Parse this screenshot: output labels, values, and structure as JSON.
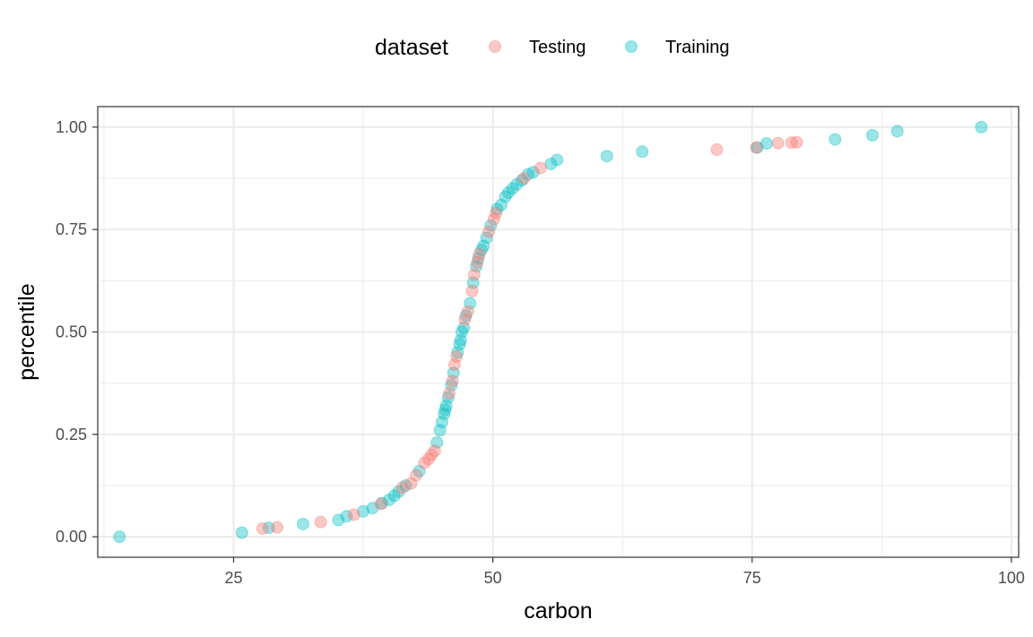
{
  "chart_data": {
    "type": "scatter",
    "title": "",
    "xlabel": "carbon",
    "ylabel": "percentile",
    "xlim": [
      11.9,
      100.7
    ],
    "ylim": [
      -0.05,
      1.05
    ],
    "x_ticks": [
      25,
      50,
      75,
      100
    ],
    "x_tick_labels": [
      "25",
      "50",
      "75",
      "100"
    ],
    "y_ticks": [
      0,
      0.25,
      0.5,
      0.75,
      1
    ],
    "y_tick_labels": [
      "0.00",
      "0.25",
      "0.50",
      "0.75",
      "1.00"
    ],
    "grid": true,
    "legend": {
      "title": "dataset",
      "position": "top"
    },
    "series": [
      {
        "name": "Testing",
        "color": "#F8766D",
        "points": [
          [
            27.8,
            0.02
          ],
          [
            29.2,
            0.023
          ],
          [
            33.4,
            0.036
          ],
          [
            36.6,
            0.054
          ],
          [
            39.2,
            0.08
          ],
          [
            41.3,
            0.12
          ],
          [
            42.1,
            0.13
          ],
          [
            42.6,
            0.15
          ],
          [
            43.4,
            0.18
          ],
          [
            43.8,
            0.19
          ],
          [
            44.1,
            0.2
          ],
          [
            44.4,
            0.21
          ],
          [
            45.8,
            0.35
          ],
          [
            46.1,
            0.38
          ],
          [
            46.3,
            0.42
          ],
          [
            46.5,
            0.44
          ],
          [
            47.3,
            0.53
          ],
          [
            47.6,
            0.55
          ],
          [
            48.0,
            0.6
          ],
          [
            48.2,
            0.64
          ],
          [
            48.5,
            0.67
          ],
          [
            48.7,
            0.69
          ],
          [
            49.6,
            0.745
          ],
          [
            50.1,
            0.775
          ],
          [
            50.3,
            0.79
          ],
          [
            53.0,
            0.875
          ],
          [
            54.6,
            0.9
          ],
          [
            71.6,
            0.945
          ],
          [
            75.4,
            0.95
          ],
          [
            77.5,
            0.961
          ],
          [
            78.8,
            0.962
          ],
          [
            79.3,
            0.963
          ]
        ]
      },
      {
        "name": "Training",
        "color": "#00BFC4",
        "points": [
          [
            14.0,
            0.0
          ],
          [
            25.8,
            0.01
          ],
          [
            28.4,
            0.022
          ],
          [
            31.7,
            0.031
          ],
          [
            35.1,
            0.041
          ],
          [
            35.9,
            0.05
          ],
          [
            37.5,
            0.062
          ],
          [
            38.4,
            0.07
          ],
          [
            39.3,
            0.082
          ],
          [
            40.0,
            0.09
          ],
          [
            40.5,
            0.1
          ],
          [
            40.9,
            0.11
          ],
          [
            41.6,
            0.125
          ],
          [
            42.9,
            0.16
          ],
          [
            44.6,
            0.23
          ],
          [
            44.9,
            0.26
          ],
          [
            45.1,
            0.28
          ],
          [
            45.3,
            0.3
          ],
          [
            45.4,
            0.31
          ],
          [
            45.5,
            0.32
          ],
          [
            45.7,
            0.34
          ],
          [
            46.0,
            0.37
          ],
          [
            46.2,
            0.4
          ],
          [
            46.6,
            0.45
          ],
          [
            46.8,
            0.47
          ],
          [
            46.9,
            0.48
          ],
          [
            47.0,
            0.5
          ],
          [
            47.2,
            0.51
          ],
          [
            47.4,
            0.54
          ],
          [
            47.8,
            0.57
          ],
          [
            48.1,
            0.62
          ],
          [
            48.4,
            0.66
          ],
          [
            48.6,
            0.68
          ],
          [
            48.9,
            0.7
          ],
          [
            49.1,
            0.71
          ],
          [
            49.4,
            0.73
          ],
          [
            49.8,
            0.76
          ],
          [
            50.4,
            0.8
          ],
          [
            50.8,
            0.81
          ],
          [
            51.2,
            0.83
          ],
          [
            51.5,
            0.84
          ],
          [
            51.9,
            0.85
          ],
          [
            52.3,
            0.86
          ],
          [
            52.8,
            0.87
          ],
          [
            53.4,
            0.885
          ],
          [
            53.9,
            0.89
          ],
          [
            55.6,
            0.91
          ],
          [
            56.2,
            0.92
          ],
          [
            61.0,
            0.929
          ],
          [
            64.4,
            0.94
          ],
          [
            75.5,
            0.95
          ],
          [
            76.4,
            0.96
          ],
          [
            83.0,
            0.97
          ],
          [
            86.6,
            0.98
          ],
          [
            89.0,
            0.99
          ],
          [
            97.1,
            1.0
          ]
        ]
      }
    ]
  }
}
